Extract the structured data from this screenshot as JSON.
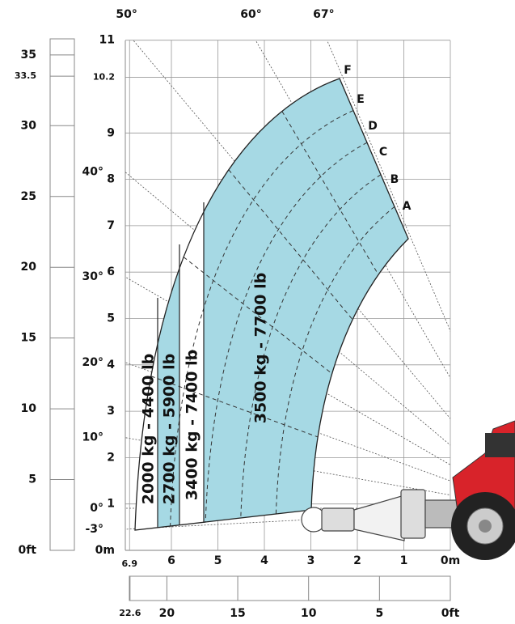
{
  "angles": [
    {
      "value": 67,
      "label": "67°"
    },
    {
      "value": 60,
      "label": "60°"
    },
    {
      "value": 50,
      "label": "50°"
    },
    {
      "value": 40,
      "label": "40°"
    },
    {
      "value": 30,
      "label": "30°"
    },
    {
      "value": 20,
      "label": "20°"
    },
    {
      "value": 10,
      "label": "10°"
    },
    {
      "value": 0,
      "label": "0°"
    },
    {
      "value": -3,
      "label": "-3°"
    }
  ],
  "height_m": [
    11,
    10.2,
    9,
    8,
    7,
    6,
    5,
    4,
    3,
    2,
    1,
    {
      "value": 0,
      "label": "0m"
    }
  ],
  "height_ft": [
    35,
    33.5,
    30,
    25,
    20,
    15,
    10,
    5,
    {
      "value": 0,
      "label": "0ft"
    }
  ],
  "reach_m": [
    6.9,
    6,
    5,
    4,
    3,
    2,
    1,
    {
      "value": 0,
      "label": "0m"
    }
  ],
  "reach_ft": [
    22.6,
    20,
    15,
    10,
    5,
    {
      "value": 0,
      "label": "0ft"
    }
  ],
  "positions": [
    "F",
    "E",
    "D",
    "C",
    "B",
    "A"
  ],
  "zones": [
    "2000 kg - 4400 lb",
    "2700 kg - 5900 lb",
    "3400 kg - 7400 lb",
    "3500 kg - 7700 lb"
  ]
}
